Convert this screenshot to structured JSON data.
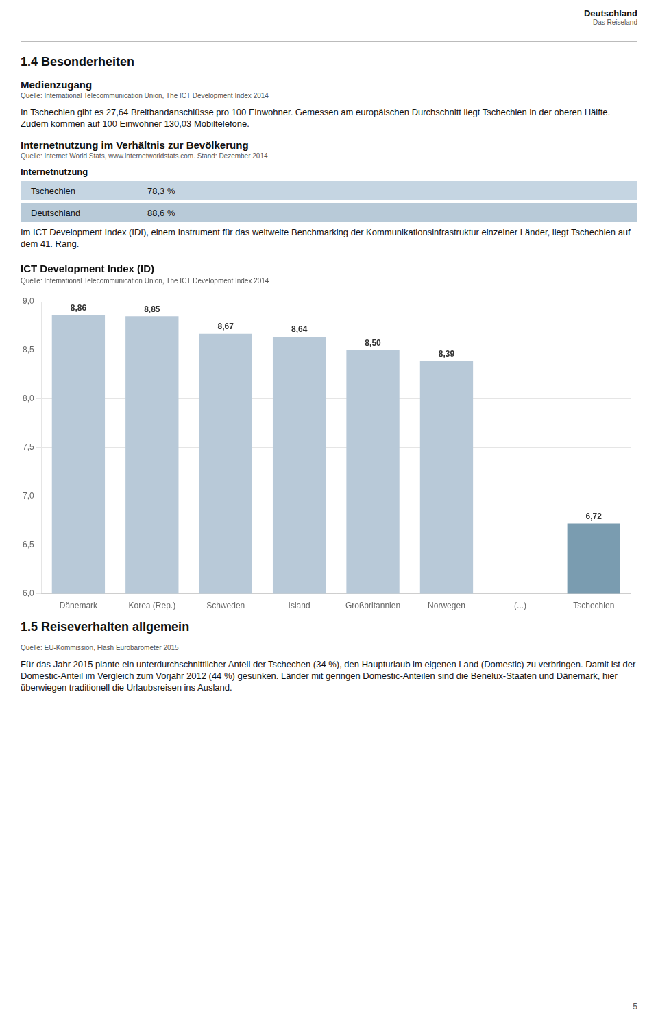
{
  "header": [
    {
      "kind": "logo",
      "text": "Deutschland"
    },
    {
      "kind": "logo-sub",
      "text": "Das Reiseland"
    }
  ],
  "text_before": [
    {
      "kind": "page_heading",
      "text": "1.4 Besonderheiten"
    },
    {
      "kind": "heading",
      "text": "Medienzugang"
    },
    {
      "kind": "source",
      "text": "Quelle: International Telecommunication Union, The ICT Development Index 2014"
    },
    {
      "kind": "body",
      "text": "In Tschechien gibt es 27,64 Breitbandanschlüsse pro 100 Einwohner. Gemessen am europäischen Durchschnitt liegt Tschechien in der oberen Hälfte. Zudem kommen auf 100 Einwohner 130,03 Mobiltelefone."
    },
    {
      "kind": "heading",
      "text": "Internetnutzung im Verhältnis zur Bevölkerung"
    },
    {
      "kind": "source",
      "text": "Quelle: Internet World Stats, www.internetworldstats.com. Stand: Dezember 2014"
    },
    {
      "kind": "table_header",
      "text": "Internetnutzung"
    },
    {
      "kind": "row",
      "cells": [
        "Tschechien",
        "78,3 %"
      ],
      "color": "#c5d5e2"
    },
    {
      "kind": "row",
      "cells": [
        "Deutschland",
        "88,6 %"
      ],
      "color": "#b8cad8"
    },
    {
      "kind": "body",
      "text": "Im ICT Development Index (IDI), einem Instrument für das weltweite Benchmarking der Kommunikationsinfrastruktur einzelner Länder, liegt Tschechien auf dem 41. Rang."
    }
  ],
  "chart_data": {
    "type": "bar",
    "title": "ICT Development Index (ID)",
    "subtitle": "Quelle: International Telecommunication Union, The ICT Development Index 2014",
    "categories": [
      "Dänemark",
      "Korea (Rep.)",
      "Schweden",
      "Island",
      "Großbritannien",
      "Norwegen",
      "(...)",
      "Tschechien"
    ],
    "values": [
      8.86,
      8.85,
      8.67,
      8.64,
      8.5,
      8.39,
      null,
      6.72
    ],
    "value_labels": [
      "8,86",
      "8,85",
      "8,67",
      "8,64",
      "8,50",
      "8,39",
      null,
      "6,72"
    ],
    "data_labels": true,
    "colors": [
      "#b8c9d8",
      "#b8c9d8",
      "#b8c9d8",
      "#b8c9d8",
      "#b8c9d8",
      "#b8c9d8",
      "#b8c9d8",
      "#7a9cb0"
    ],
    "ylim": [
      6.0,
      9.0
    ],
    "yticks": [
      {
        "value": 6.0,
        "label": "6,0"
      },
      {
        "value": 6.5,
        "label": "6,5"
      },
      {
        "value": 7.0,
        "label": "7,0"
      },
      {
        "value": 7.5,
        "label": "7,5"
      },
      {
        "value": 8.0,
        "label": "8,0"
      },
      {
        "value": 8.5,
        "label": "8,5"
      },
      {
        "value": 9.0,
        "label": "9,0"
      }
    ],
    "grid": true
  },
  "text_after": [
    {
      "kind": "page_heading",
      "text": "1.5 Reiseverhalten allgemein"
    },
    {
      "kind": "source",
      "text": "Quelle: EU-Kommission, Flash Eurobarometer 2015"
    },
    {
      "kind": "body",
      "text": "Für das Jahr 2015 plante ein unterdurchschnittlicher Anteil der Tschechen (34 %), den Haupturlaub im eigenen Land (Domestic) zu verbringen. Damit ist der Domestic-Anteil im Vergleich zum Vorjahr 2012 (44 %) gesunken. Länder mit geringen Domestic-Anteilen sind die Benelux-Staaten und Dänemark, hier überwiegen traditionell die Urlaubsreisen ins Ausland."
    }
  ],
  "page_number": "5"
}
